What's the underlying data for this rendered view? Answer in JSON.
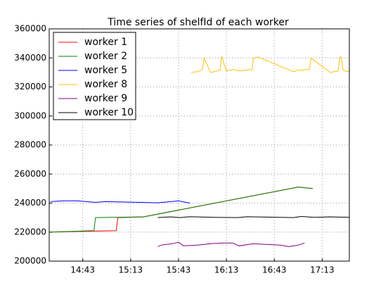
{
  "chart_data": {
    "type": "line",
    "title": "Time series of shelfId of each worker",
    "xlim": [
      "14:22",
      "17:30"
    ],
    "xticks": [
      "14:43",
      "15:13",
      "15:43",
      "16:13",
      "16:43",
      "17:13"
    ],
    "ylim": [
      200000,
      360000
    ],
    "yticks": [
      200000,
      220000,
      240000,
      260000,
      280000,
      300000,
      320000,
      340000,
      360000
    ],
    "grid": true,
    "legend": "upper left",
    "series": [
      {
        "name": "worker 1",
        "color": "#ff0000",
        "x": [
          "14:22",
          "15:04",
          "15:05",
          "15:21",
          "16:58",
          "17:07"
        ],
        "values": [
          220000,
          221000,
          230000,
          230500,
          251000,
          250000
        ]
      },
      {
        "name": "worker 2",
        "color": "#008000",
        "x": [
          "14:22",
          "14:50",
          "14:51",
          "15:21",
          "16:58",
          "17:07"
        ],
        "values": [
          220000,
          221000,
          230000,
          230500,
          251000,
          250000
        ]
      },
      {
        "name": "worker 5",
        "color": "#0000ff",
        "x": [
          "14:23",
          "14:31",
          "14:40",
          "14:51",
          "14:57",
          "15:19",
          "15:30",
          "15:43",
          "15:50"
        ],
        "values": [
          241000,
          241500,
          241500,
          240500,
          241000,
          240500,
          240200,
          241500,
          240000
        ]
      },
      {
        "name": "worker 8",
        "color": "#ffbf00",
        "x": [
          "15:51",
          "15:55",
          "15:58",
          "15:59",
          "16:03",
          "16:09",
          "16:10",
          "16:13",
          "16:17",
          "16:21",
          "16:29",
          "16:30",
          "16:33",
          "16:55",
          "16:58",
          "17:05",
          "17:06",
          "17:18",
          "17:23",
          "17:24",
          "17:25",
          "17:26",
          "17:28",
          "17:30"
        ],
        "values": [
          330000,
          330500,
          332000,
          340000,
          330000,
          331500,
          341000,
          331000,
          332000,
          331000,
          332000,
          340000,
          340500,
          330500,
          331500,
          332000,
          340000,
          330000,
          331000,
          340500,
          340500,
          332000,
          330500,
          331000
        ]
      },
      {
        "name": "worker 9",
        "color": "#800080",
        "x": [
          "15:30",
          "15:32",
          "15:39",
          "15:43",
          "15:46",
          "15:55",
          "16:03",
          "16:10",
          "16:17",
          "16:21",
          "16:30",
          "16:38",
          "16:47",
          "16:52",
          "16:58",
          "17:02"
        ],
        "values": [
          210000,
          211000,
          212000,
          213000,
          210500,
          211000,
          212000,
          212500,
          212500,
          210500,
          212000,
          211500,
          211000,
          210000,
          211000,
          212500
        ]
      },
      {
        "name": "worker 10",
        "color": "#000000",
        "x": [
          "15:30",
          "15:38",
          "15:44",
          "15:50",
          "16:05",
          "16:20",
          "16:26",
          "16:40",
          "16:55",
          "17:00",
          "17:08",
          "17:18",
          "17:30"
        ],
        "values": [
          230000,
          230500,
          230000,
          230600,
          230200,
          230000,
          230600,
          230300,
          230000,
          230800,
          230200,
          230500,
          230200
        ]
      }
    ]
  }
}
